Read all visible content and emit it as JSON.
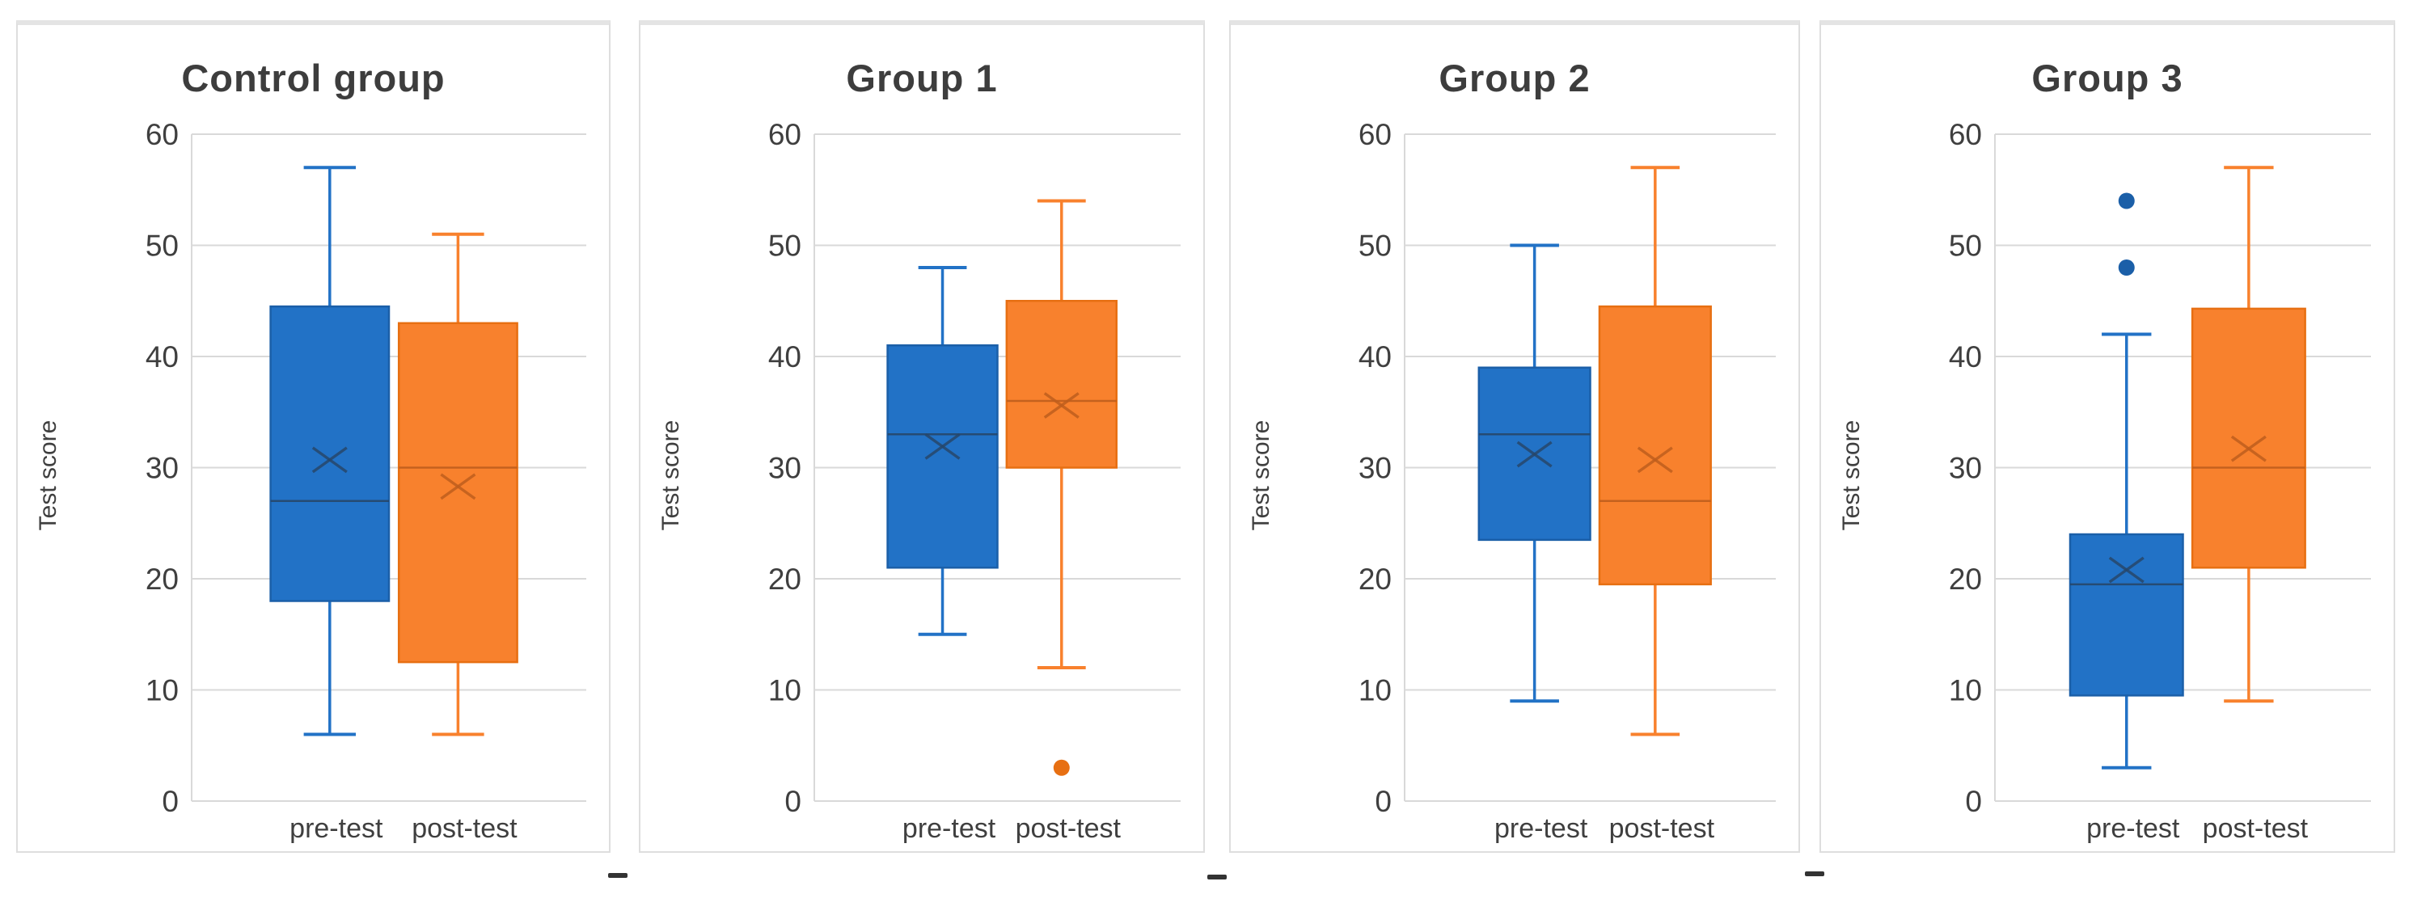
{
  "figure": {
    "background": "#ffffff",
    "grid_color": "#d9d9d9",
    "text_color": "#3f3f3f"
  },
  "chart_data": [
    {
      "type": "boxplot",
      "title": "Control group",
      "ylabel": "Test score",
      "ylim": [
        0,
        60
      ],
      "yticks": [
        0,
        10,
        20,
        30,
        40,
        50,
        60
      ],
      "grid": true,
      "legend": "none",
      "categories": [
        "pre-test",
        "post-test"
      ],
      "series": [
        {
          "name": "pre-test",
          "fill": "#2272C6",
          "edge": "#1B5FA8",
          "detail": "#27476B",
          "min": 6,
          "q1": 18,
          "median": 27,
          "mean": 30.7,
          "q3": 44.5,
          "max": 57,
          "outliers": []
        },
        {
          "name": "post-test",
          "fill": "#F8812D",
          "edge": "#E76F12",
          "detail": "#BF5E1D",
          "min": 6,
          "q1": 12.5,
          "median": 30,
          "mean": 28.3,
          "q3": 43,
          "max": 51,
          "outliers": []
        }
      ]
    },
    {
      "type": "boxplot",
      "title": "Group 1",
      "ylabel": "Test score",
      "ylim": [
        0,
        60
      ],
      "yticks": [
        0,
        10,
        20,
        30,
        40,
        50,
        60
      ],
      "grid": true,
      "legend": "none",
      "categories": [
        "pre-test",
        "post-test"
      ],
      "series": [
        {
          "name": "pre-test",
          "fill": "#2272C6",
          "edge": "#1B5FA8",
          "detail": "#27476B",
          "min": 15,
          "q1": 21,
          "median": 33,
          "mean": 31.9,
          "q3": 41,
          "max": 48,
          "outliers": []
        },
        {
          "name": "post-test",
          "fill": "#F8812D",
          "edge": "#E76F12",
          "detail": "#BF5E1D",
          "min": 12,
          "q1": 30,
          "median": 36,
          "mean": 35.6,
          "q3": 45,
          "max": 54,
          "outliers": [
            3
          ]
        }
      ]
    },
    {
      "type": "boxplot",
      "title": "Group 2",
      "ylabel": "Test score",
      "ylim": [
        0,
        60
      ],
      "yticks": [
        0,
        10,
        20,
        30,
        40,
        50,
        60
      ],
      "grid": true,
      "legend": "none",
      "categories": [
        "pre-test",
        "post-test"
      ],
      "series": [
        {
          "name": "pre-test",
          "fill": "#2272C6",
          "edge": "#1B5FA8",
          "detail": "#27476B",
          "min": 9,
          "q1": 23.5,
          "median": 33,
          "mean": 31.2,
          "q3": 39,
          "max": 50,
          "outliers": []
        },
        {
          "name": "post-test",
          "fill": "#F8812D",
          "edge": "#E76F12",
          "detail": "#BF5E1D",
          "min": 6,
          "q1": 19.5,
          "median": 27,
          "mean": 30.7,
          "q3": 44.5,
          "max": 57,
          "outliers": []
        }
      ]
    },
    {
      "type": "boxplot",
      "title": "Group 3",
      "ylabel": "Test score",
      "ylim": [
        0,
        60
      ],
      "yticks": [
        0,
        10,
        20,
        30,
        40,
        50,
        60
      ],
      "grid": true,
      "legend": "none",
      "categories": [
        "pre-test",
        "post-test"
      ],
      "series": [
        {
          "name": "pre-test",
          "fill": "#2272C6",
          "edge": "#1B5FA8",
          "detail": "#27476B",
          "min": 3,
          "q1": 9.5,
          "median": 19.5,
          "mean": 20.8,
          "q3": 24,
          "max": 42,
          "outliers": [
            48,
            54
          ]
        },
        {
          "name": "post-test",
          "fill": "#F8812D",
          "edge": "#E76F12",
          "detail": "#BF5E1D",
          "min": 9,
          "q1": 21,
          "median": 30,
          "mean": 31.7,
          "q3": 44.3,
          "max": 57,
          "outliers": []
        }
      ]
    }
  ]
}
